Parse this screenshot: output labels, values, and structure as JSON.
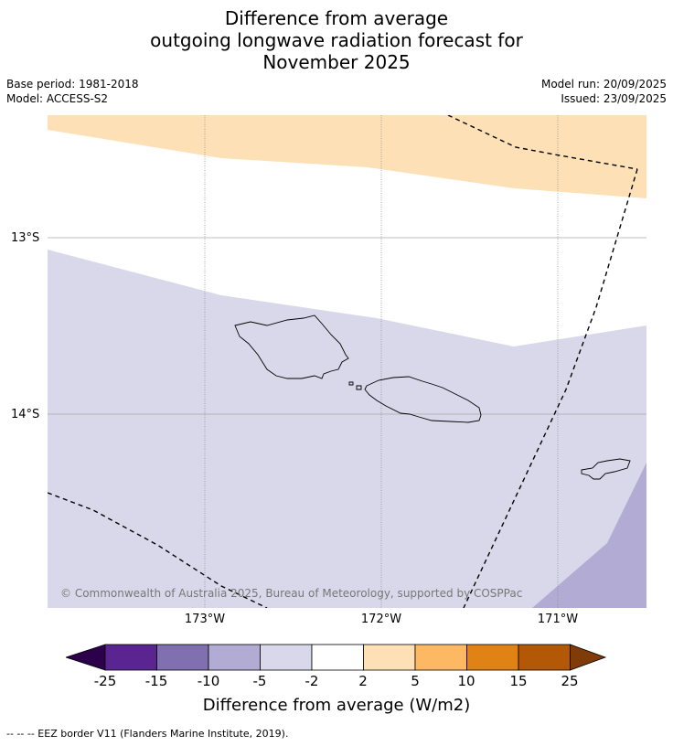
{
  "title": {
    "line1": "Difference from average",
    "line2": "outgoing longwave radiation forecast for",
    "line3": "November 2025"
  },
  "meta": {
    "base_period": "Base period: 1981-2018",
    "model": "Model: ACCESS-S2",
    "model_run": "Model run: 20/09/2025",
    "issued": "Issued: 23/09/2025"
  },
  "map": {
    "lat_labels": [
      "13°S",
      "14°S"
    ],
    "lon_labels": [
      "173°W",
      "172°W",
      "171°W"
    ],
    "copyright": "© Commonwealth of Australia 2025, Bureau of Meteorology, supported by COSPPac",
    "region_colors": {
      "orange_light": "#fde0b6",
      "purple_light": "#d8d8ea",
      "purple_mid": "#b2abd3",
      "white": "#ffffff"
    }
  },
  "colorbar": {
    "ticks": [
      "-25",
      "-15",
      "-10",
      "-5",
      "-2",
      "2",
      "5",
      "10",
      "15",
      "25"
    ],
    "colors": [
      "#5a2590",
      "#8070b0",
      "#b2abd3",
      "#d8d8ea",
      "#ffffff",
      "#fde0b6",
      "#fdb863",
      "#e08214",
      "#b35806"
    ],
    "extend_low_color": "#2d004b",
    "extend_high_color": "#7f3b08",
    "label": "Difference from average (W/m2)"
  },
  "footnote": "--  --  -- EEZ border V11 (Flanders Marine Institute, 2019)."
}
